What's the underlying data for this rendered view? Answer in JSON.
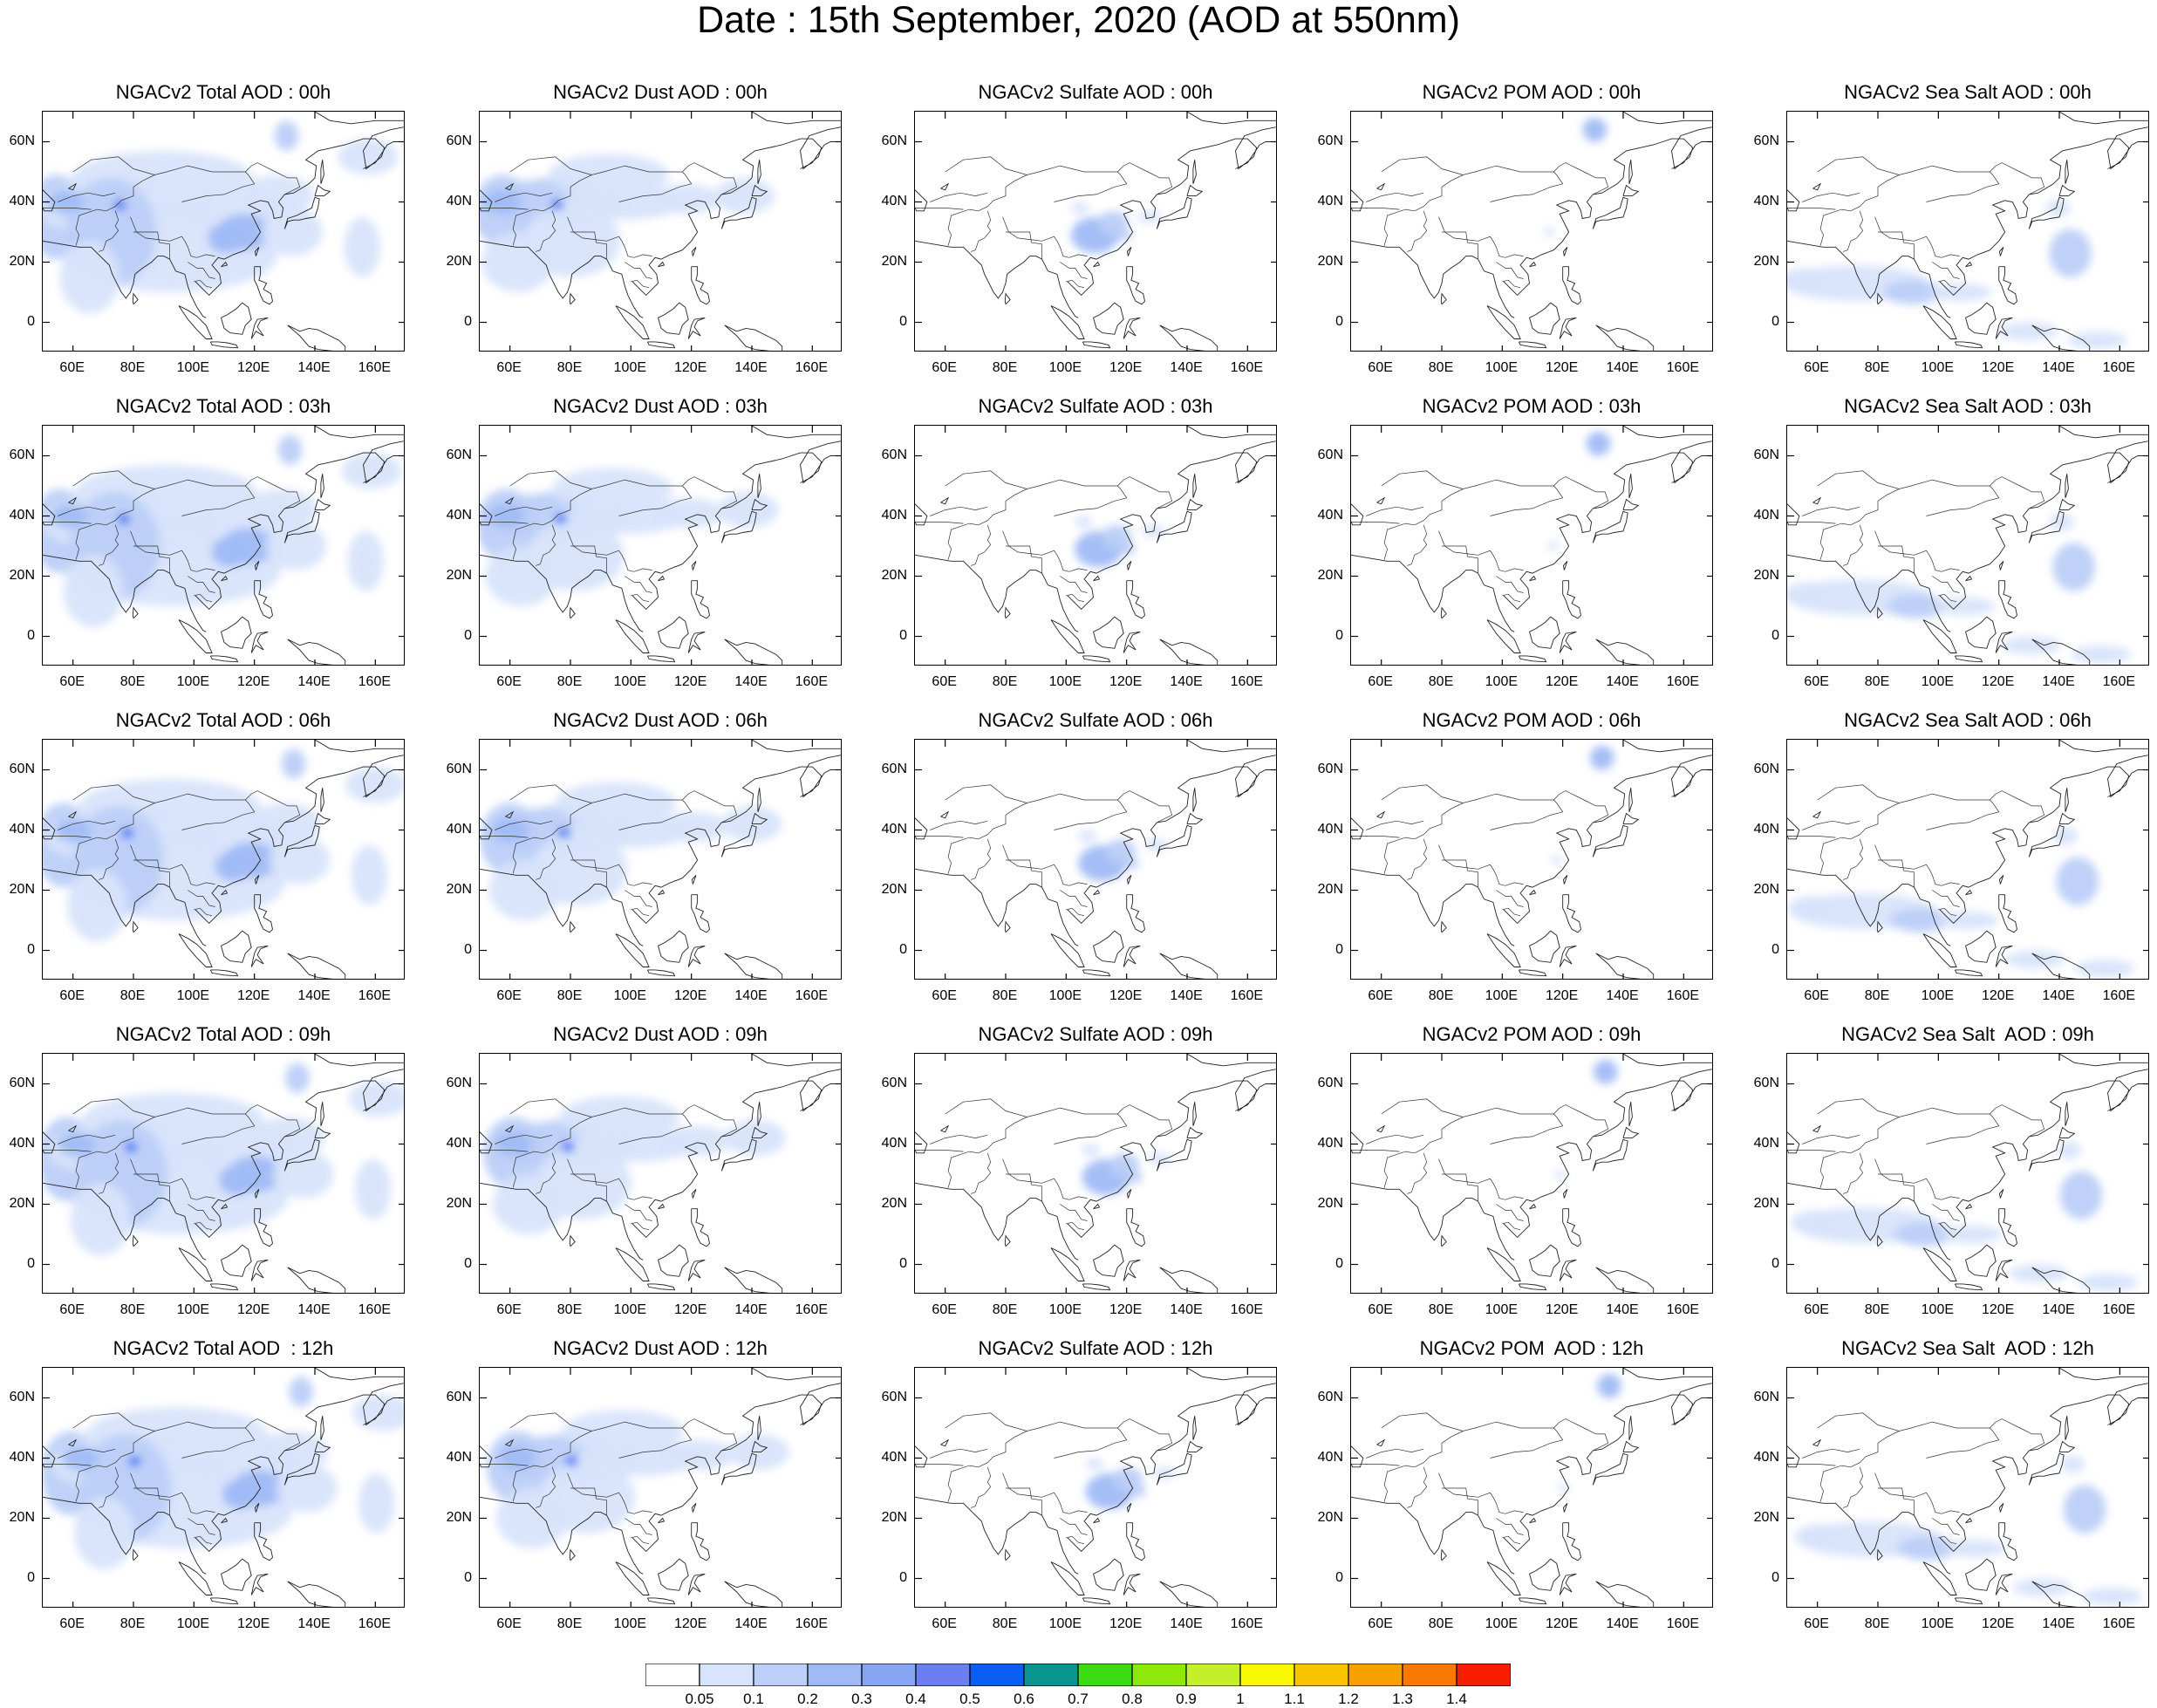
{
  "figure": {
    "title": "Date : 15th September, 2020 (AOD at 550nm)",
    "columns": [
      "total",
      "dust",
      "sulfate",
      "pom",
      "seasalt"
    ],
    "rows": [
      "00h",
      "03h",
      "06h",
      "09h",
      "12h"
    ],
    "panel_titles": [
      [
        "NGACv2 Total AOD : 00h",
        "NGACv2 Dust AOD : 00h",
        "NGACv2 Sulfate AOD : 00h",
        "NGACv2 POM AOD : 00h",
        "NGACv2 Sea Salt AOD : 00h"
      ],
      [
        "NGACv2 Total AOD : 03h",
        "NGACv2 Dust AOD : 03h",
        "NGACv2 Sulfate AOD : 03h",
        "NGACv2 POM AOD : 03h",
        "NGACv2 Sea Salt AOD : 03h"
      ],
      [
        "NGACv2 Total AOD : 06h",
        "NGACv2 Dust AOD : 06h",
        "NGACv2 Sulfate AOD : 06h",
        "NGACv2 POM AOD : 06h",
        "NGACv2 Sea Salt AOD : 06h"
      ],
      [
        "NGACv2 Total AOD : 09h",
        "NGACv2 Dust AOD : 09h",
        "NGACv2 Sulfate AOD : 09h",
        "NGACv2 POM AOD : 09h",
        "NGACv2 Sea Salt  AOD : 09h"
      ],
      [
        "NGACv2 Total AOD  : 12h",
        "NGACv2 Dust AOD : 12h",
        "NGACv2 Sulfate AOD : 12h",
        "NGACv2 POM  AOD : 12h",
        "NGACv2 Sea Salt  AOD : 12h"
      ]
    ],
    "lon_ticks": [
      "60E",
      "80E",
      "100E",
      "120E",
      "140E",
      "160E"
    ],
    "lat_ticks": [
      "60N",
      "40N",
      "20N",
      "0"
    ],
    "lon_tick_values": [
      60,
      80,
      100,
      120,
      140,
      160
    ],
    "lat_tick_values": [
      60,
      40,
      20,
      0
    ],
    "lon_range": [
      50,
      170
    ],
    "lat_range": [
      -10,
      70
    ]
  },
  "colorbar": {
    "labels": [
      "0.05",
      "0.1",
      "0.2",
      "0.3",
      "0.4",
      "0.5",
      "0.6",
      "0.7",
      "0.8",
      "0.9",
      "1",
      "1.1",
      "1.2",
      "1.3",
      "1.4"
    ],
    "colors": [
      "#ffffff",
      "#d8e4fb",
      "#bccff8",
      "#a0baf5",
      "#86a4f2",
      "#6b7ff0",
      "#0a5ff2",
      "#0a9690",
      "#3cdc15",
      "#8ee80a",
      "#c4f02a",
      "#f8f800",
      "#f8c400",
      "#f8a000",
      "#f87800",
      "#f81e00"
    ]
  }
}
